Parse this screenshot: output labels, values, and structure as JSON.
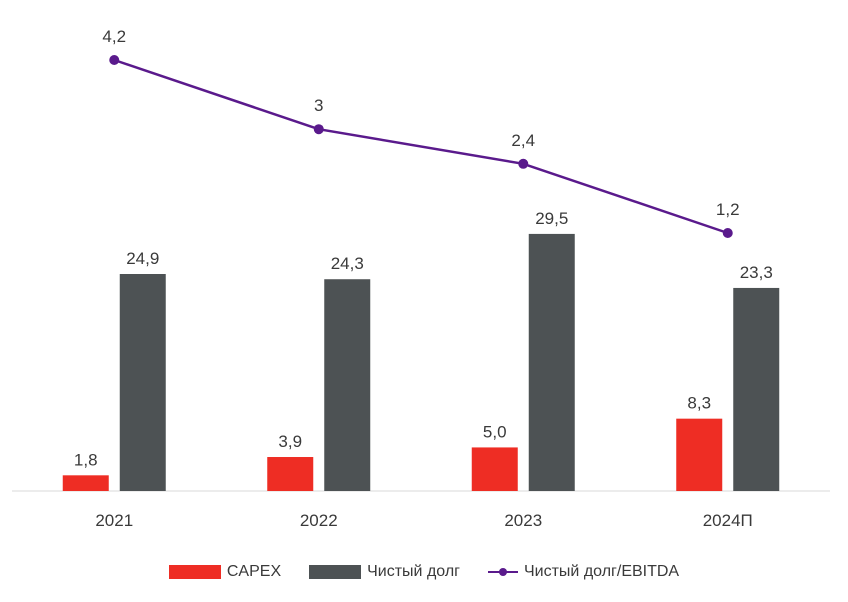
{
  "chart_data": {
    "type": "bar",
    "categories": [
      "2021",
      "2022",
      "2023",
      "2024П"
    ],
    "series": [
      {
        "name": "CAPEX",
        "kind": "bar",
        "color": "#ee2d24",
        "values": [
          1.8,
          3.9,
          5.0,
          8.3
        ],
        "labels": [
          "1,8",
          "3,9",
          "5,0",
          "8,3"
        ]
      },
      {
        "name": "Чистый долг",
        "kind": "bar",
        "color": "#4d5254",
        "values": [
          24.9,
          24.3,
          29.5,
          23.3
        ],
        "labels": [
          "24,9",
          "24,3",
          "29,5",
          "23,3"
        ]
      },
      {
        "name": "Чистый долг/EBITDA",
        "kind": "line",
        "axis": "secondary",
        "color": "#5a1a8c",
        "values": [
          4.2,
          3,
          2.4,
          1.2
        ],
        "labels": [
          "4,2",
          "3",
          "2,4",
          "1,2"
        ]
      }
    ],
    "legend_position": "bottom",
    "grid": false
  }
}
